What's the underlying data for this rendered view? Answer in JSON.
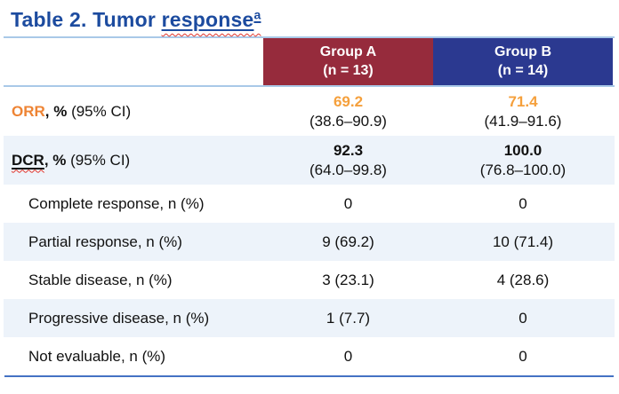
{
  "title": {
    "prefix": "Table 2. Tumor ",
    "emphasized": "response",
    "superscript": "a"
  },
  "colors": {
    "title_blue": "#1C4B9F",
    "group_a_bg": "#962B3C",
    "group_b_bg": "#2B3990",
    "stripe_bg": "#EDF3FA",
    "header_rule": "#A9C9E8",
    "bottom_rule": "#4472C4",
    "orange_label": "#EE8434",
    "orange_value": "#F5A03C",
    "squiggle_red": "#E0352B"
  },
  "header": {
    "group_a": {
      "name": "Group A",
      "n": "(n = 13)"
    },
    "group_b": {
      "name": "Group B",
      "n": "(n = 14)"
    }
  },
  "rows": {
    "orr": {
      "term": "ORR",
      "bold_rest": ", %",
      "rest": " (95% CI)",
      "a_value": "69.2",
      "a_ci": "(38.6–90.9)",
      "b_value": "71.4",
      "b_ci": "(41.9–91.6)"
    },
    "dcr": {
      "term": "DCR",
      "bold_rest": ", %",
      "rest": " (95% CI)",
      "a_value": "92.3",
      "a_ci": "(64.0–99.8)",
      "b_value": "100.0",
      "b_ci": "(76.8–100.0)"
    },
    "complete": {
      "label": "Complete response, n (%)",
      "a": "0",
      "b": "0"
    },
    "partial": {
      "label": "Partial response, n (%)",
      "a": "9 (69.2)",
      "b": "10 (71.4)"
    },
    "stable": {
      "label": "Stable disease, n (%)",
      "a": "3 (23.1)",
      "b": "4 (28.6)"
    },
    "progressive": {
      "label": "Progressive disease, n (%)",
      "a": "1 (7.7)",
      "b": "0"
    },
    "not_evaluable": {
      "label": "Not evaluable, n (%)",
      "a": "0",
      "b": "0"
    }
  }
}
